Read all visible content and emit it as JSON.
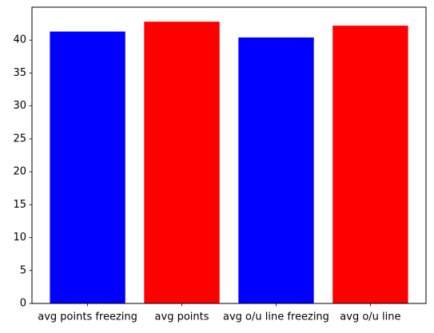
{
  "chart_data": {
    "type": "bar",
    "categories": [
      "avg points freezing",
      "avg points",
      "avg o/u line freezing",
      "avg o/u line"
    ],
    "values": [
      41.3,
      42.8,
      40.4,
      42.2
    ],
    "colors": [
      "#0000ff",
      "#ff0000",
      "#0000ff",
      "#ff0000"
    ],
    "title": "",
    "xlabel": "",
    "ylabel": "",
    "ylim": [
      0,
      45
    ],
    "yticks": [
      0,
      5,
      10,
      15,
      20,
      25,
      30,
      35,
      40
    ],
    "grid": false
  }
}
